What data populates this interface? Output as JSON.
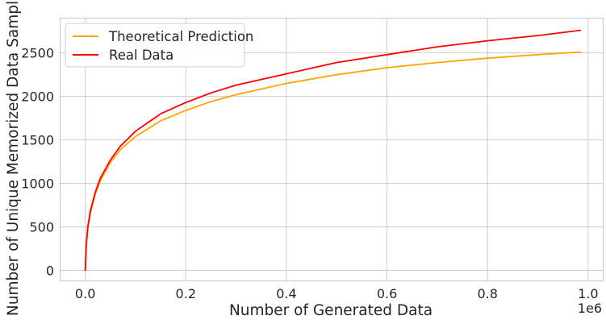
{
  "chart_data": {
    "type": "line",
    "xlabel": "Number of Generated Data",
    "ylabel": "Number of Unique Memorized Data Samples",
    "x_offset_text": "1e6",
    "xlim": [
      -0.05,
      1.03
    ],
    "ylim": [
      -120,
      2900
    ],
    "x_ticks": [
      0.0,
      0.2,
      0.4,
      0.6,
      0.8,
      1.0
    ],
    "x_tick_labels": [
      "0.0",
      "0.2",
      "0.4",
      "0.6",
      "0.8",
      "1.0"
    ],
    "y_ticks": [
      0,
      500,
      1000,
      1500,
      2000,
      2500
    ],
    "y_tick_labels": [
      "0",
      "500",
      "1000",
      "1500",
      "2000",
      "2500"
    ],
    "grid": true,
    "legend_position": "top-left",
    "series": [
      {
        "name": "Theoretical Prediction",
        "color": "#ffa500",
        "x": [
          0.0,
          0.002,
          0.005,
          0.01,
          0.02,
          0.03,
          0.05,
          0.07,
          0.1,
          0.15,
          0.2,
          0.25,
          0.3,
          0.4,
          0.5,
          0.6,
          0.7,
          0.8,
          0.9,
          0.985
        ],
        "y": [
          0,
          280,
          480,
          650,
          880,
          1030,
          1240,
          1390,
          1540,
          1720,
          1840,
          1940,
          2020,
          2150,
          2250,
          2330,
          2390,
          2440,
          2480,
          2510
        ]
      },
      {
        "name": "Real Data",
        "color": "#ff0000",
        "x": [
          0.0,
          0.002,
          0.005,
          0.01,
          0.02,
          0.03,
          0.05,
          0.07,
          0.1,
          0.15,
          0.2,
          0.25,
          0.3,
          0.4,
          0.5,
          0.6,
          0.7,
          0.8,
          0.9,
          0.985
        ],
        "y": [
          0,
          290,
          500,
          680,
          900,
          1060,
          1270,
          1430,
          1600,
          1800,
          1930,
          2040,
          2130,
          2260,
          2390,
          2480,
          2570,
          2640,
          2700,
          2760
        ]
      }
    ]
  }
}
